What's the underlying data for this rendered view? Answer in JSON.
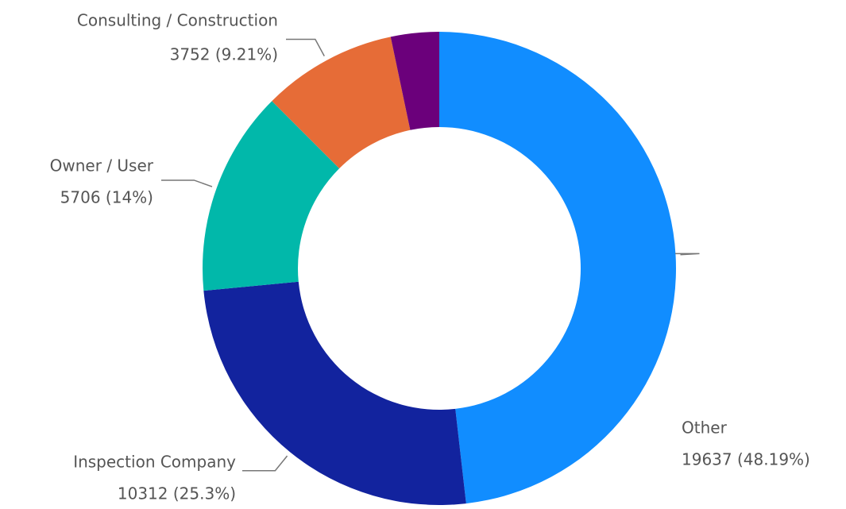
{
  "chart_data": {
    "type": "donut",
    "categories": [
      "Other",
      "Inspection Company",
      "Owner / User",
      "Consulting / Construction",
      null
    ],
    "values": [
      19637,
      10312,
      5706,
      3752,
      1342
    ],
    "value_labels": [
      "19637 (48.19%)",
      "10312 (25.3%)",
      "5706 (14%)",
      "3752 (9.21%)",
      null
    ],
    "colors": [
      "#118DFF",
      "#12239E",
      "#01B8AA",
      "#E66C37",
      "#6B007B"
    ]
  }
}
